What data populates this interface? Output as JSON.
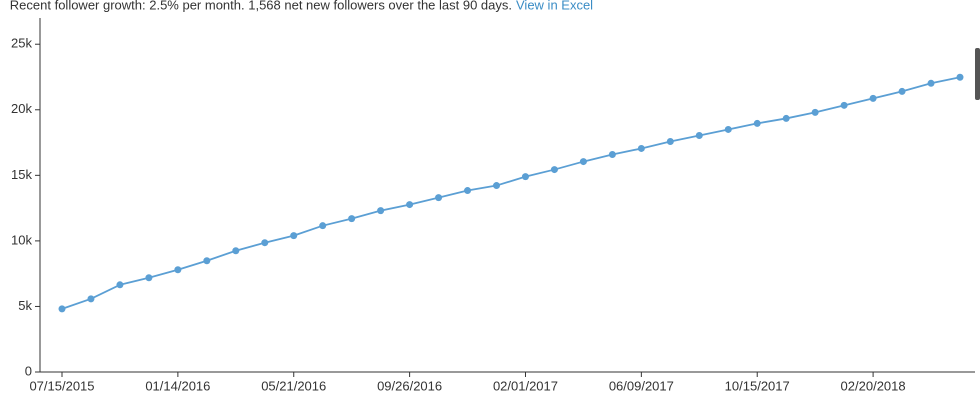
{
  "chart_data": {
    "type": "line",
    "title": "Recent follower growth: 2.5% per month. 1,568 net new followers over the last 90 days.",
    "link": "View in Excel",
    "categories": [
      "07/15/2015",
      null,
      null,
      null,
      "01/14/2016",
      null,
      null,
      null,
      "05/21/2016",
      null,
      null,
      null,
      "09/26/2016",
      null,
      null,
      null,
      "02/01/2017",
      null,
      null,
      null,
      "06/09/2017",
      null,
      null,
      null,
      "10/15/2017",
      null,
      null,
      null,
      "02/20/2018",
      null,
      null,
      null
    ],
    "series": [
      {
        "color": "#5b9fd4",
        "values": [
          4816,
          5580,
          6650,
          7186,
          7800,
          8486,
          9250,
          9862,
          10400,
          11160,
          11700,
          12310,
          12770,
          13300,
          13840,
          14220,
          14900,
          15440,
          16050,
          16590,
          17050,
          17580,
          18040,
          18500,
          18960,
          19340,
          19800,
          20340,
          20870,
          21400,
          22020,
          22480
        ]
      }
    ],
    "ylim": [
      0,
      27000
    ],
    "yticks": [
      0,
      {
        "value": 5000,
        "label": "5k"
      },
      {
        "value": 10000,
        "label": "10k"
      },
      {
        "value": 15000,
        "label": "15k"
      },
      {
        "value": 20000,
        "label": "20k"
      },
      {
        "value": 25000,
        "label": "25k"
      }
    ],
    "grid": false
  }
}
